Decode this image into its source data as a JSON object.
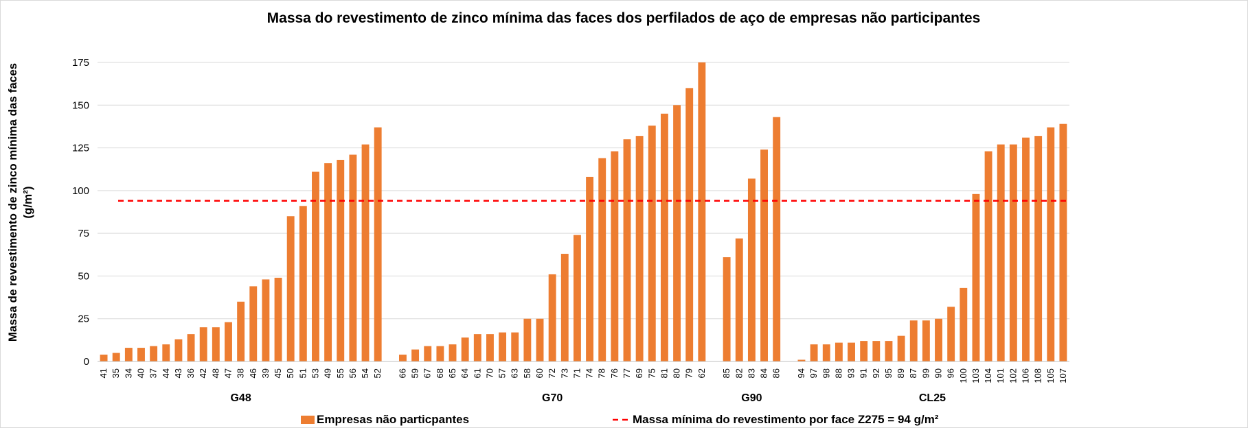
{
  "chart_data": {
    "type": "bar",
    "title": "Massa do revestimento de zinco mínima das faces dos perfilados de aço de empresas não participantes",
    "ylabel": "Massa de revestimento de zinco mínima das faces (g/m²)",
    "ylim": [
      0,
      175
    ],
    "yticks": [
      0,
      25,
      50,
      75,
      100,
      125,
      150,
      175
    ],
    "grid": true,
    "series_name": "Empresas não particpantes",
    "color": "#ed7d31",
    "groups": [
      {
        "name": "G48",
        "categories": [
          "41",
          "35",
          "34",
          "40",
          "37",
          "44",
          "43",
          "36",
          "42",
          "48",
          "47",
          "38",
          "46",
          "39",
          "45",
          "50",
          "51",
          "53",
          "49",
          "55",
          "56",
          "54",
          "52"
        ],
        "values": [
          4,
          5,
          8,
          8,
          9,
          10,
          13,
          16,
          20,
          20,
          23,
          35,
          44,
          48,
          49,
          85,
          91,
          111,
          116,
          118,
          121,
          127,
          137
        ]
      },
      {
        "name": "G70",
        "categories": [
          "66",
          "59",
          "67",
          "68",
          "65",
          "64",
          "61",
          "70",
          "57",
          "63",
          "58",
          "60",
          "72",
          "73",
          "71",
          "74",
          "78",
          "76",
          "77",
          "69",
          "75",
          "81",
          "80",
          "79",
          "62"
        ],
        "values": [
          4,
          7,
          9,
          9,
          10,
          14,
          16,
          16,
          17,
          17,
          25,
          25,
          51,
          63,
          74,
          108,
          119,
          123,
          130,
          132,
          138,
          145,
          150,
          160,
          175
        ]
      },
      {
        "name": "G90",
        "categories": [
          "85",
          "82",
          "83",
          "84",
          "86"
        ],
        "values": [
          61,
          72,
          107,
          124,
          143
        ]
      },
      {
        "name": "CL25",
        "categories": [
          "94",
          "97",
          "98",
          "88",
          "93",
          "91",
          "92",
          "95",
          "89",
          "87",
          "99",
          "90",
          "96",
          "100",
          "103",
          "104",
          "101",
          "102",
          "106",
          "108",
          "105",
          "107"
        ],
        "values": [
          1,
          10,
          10,
          11,
          11,
          12,
          12,
          12,
          15,
          24,
          24,
          25,
          32,
          43,
          98,
          123,
          127,
          127,
          131,
          132,
          137,
          139
        ]
      }
    ],
    "reference_line": {
      "label": "Massa mínima do revestimento por face Z275 = 94 g/m²",
      "value": 94,
      "color": "#ff0000"
    }
  }
}
